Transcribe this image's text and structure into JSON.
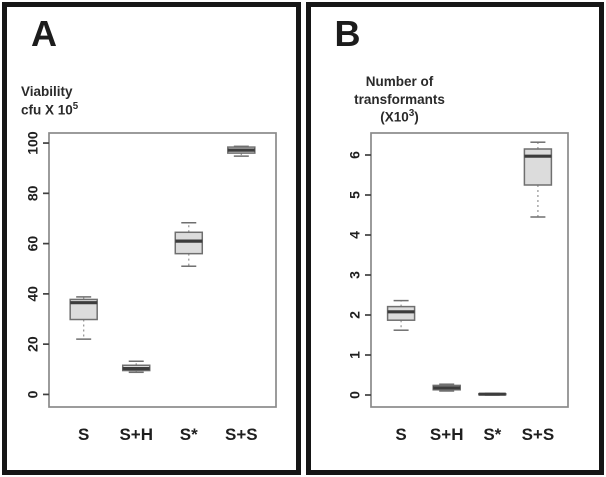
{
  "figure": {
    "panels": [
      {
        "letter": "A",
        "ylabel": {
          "line1": "Viability",
          "line2_base": "cfu X 10",
          "line2_sup": "5"
        }
      },
      {
        "letter": "B",
        "ylabel": {
          "line1": "Number of",
          "line2": "transformants",
          "line3_base": "(X10",
          "line3_sup": "3",
          "line3_close": ")"
        }
      }
    ]
  },
  "colors": {
    "panel_border": "#161616",
    "frame": "#8a8a8a",
    "tick": "#3f3f3f",
    "box_fill": "#dcdcdc",
    "box_stroke": "#6f6f6f",
    "median": "#3c3c3c",
    "whisker": "#9a9a9a",
    "text": "#1f1f1f"
  },
  "chart_data": [
    {
      "type": "boxplot",
      "panel": "A",
      "title": "A",
      "ylabel": "Viability cfu X 10^5",
      "categories": [
        "S",
        "S+H",
        "S*",
        "S+S"
      ],
      "yticks": [
        0,
        20,
        40,
        60,
        80,
        100
      ],
      "ylim": [
        -5,
        104
      ],
      "grid": false,
      "legend": "none",
      "series": [
        {
          "category": "S",
          "low": 22,
          "q1": 29.8,
          "median": 36.5,
          "q3": 37.8,
          "high": 38.8
        },
        {
          "category": "S+H",
          "low": 8.8,
          "q1": 9.5,
          "median": 10.3,
          "q3": 11.6,
          "high": 13.2
        },
        {
          "category": "S*",
          "low": 51,
          "q1": 56,
          "median": 61,
          "q3": 64.5,
          "high": 68.3
        },
        {
          "category": "S+S",
          "low": 94.8,
          "q1": 96,
          "median": 97.2,
          "q3": 98.4,
          "high": 98.7
        }
      ]
    },
    {
      "type": "boxplot",
      "panel": "B",
      "title": "B",
      "ylabel": "Number of transformants (X10^3)",
      "categories": [
        "S",
        "S+H",
        "S*",
        "S+S"
      ],
      "yticks": [
        0,
        1,
        2,
        3,
        4,
        5,
        6
      ],
      "ylim": [
        -0.3,
        6.55
      ],
      "grid": false,
      "legend": "none",
      "series": [
        {
          "category": "S",
          "low": 1.62,
          "q1": 1.87,
          "median": 2.08,
          "q3": 2.21,
          "high": 2.36
        },
        {
          "category": "S+H",
          "low": 0.1,
          "q1": 0.13,
          "median": 0.18,
          "q3": 0.24,
          "high": 0.27
        },
        {
          "category": "S*",
          "low": 0.0,
          "q1": 0.01,
          "median": 0.02,
          "q3": 0.03,
          "high": 0.04
        },
        {
          "category": "S+S",
          "low": 4.45,
          "q1": 5.25,
          "median": 5.97,
          "q3": 6.15,
          "high": 6.32
        }
      ]
    }
  ]
}
